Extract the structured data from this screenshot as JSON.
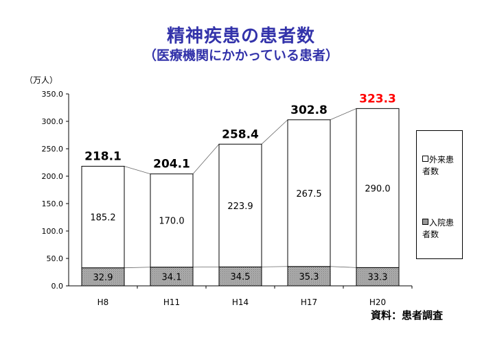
{
  "title": "精神疾患の患者数",
  "subtitle": "（医療機関にかかっている患者）",
  "unit": "（万人）",
  "source": "資料：患者調査",
  "colors": {
    "title": "#3333aa",
    "highlight": "#ff0000",
    "inpatient_fill": "#a0a0a0",
    "outpatient_fill": "#ffffff"
  },
  "chart_data": {
    "type": "bar",
    "stacked": true,
    "categories": [
      "H8",
      "H11",
      "H14",
      "H17",
      "H20"
    ],
    "series": [
      {
        "name": "入院患者数",
        "values": [
          32.9,
          34.1,
          34.5,
          35.3,
          33.3
        ]
      },
      {
        "name": "外来患者数",
        "values": [
          185.2,
          170.0,
          223.9,
          267.5,
          290.0
        ]
      }
    ],
    "totals": [
      "218.1",
      "204.1",
      "258.4",
      "302.8",
      "323.3"
    ],
    "highlight_index": 4,
    "ylim": [
      0,
      350
    ],
    "yticks": [
      "0.0",
      "50.0",
      "100.0",
      "150.0",
      "200.0",
      "250.0",
      "300.0",
      "350.0"
    ],
    "legend_position": "right",
    "grid": false
  },
  "legend": [
    {
      "label": "外来患\n者数",
      "kind": "outpatient"
    },
    {
      "label": "入院患\n者数",
      "kind": "inpatient"
    }
  ]
}
